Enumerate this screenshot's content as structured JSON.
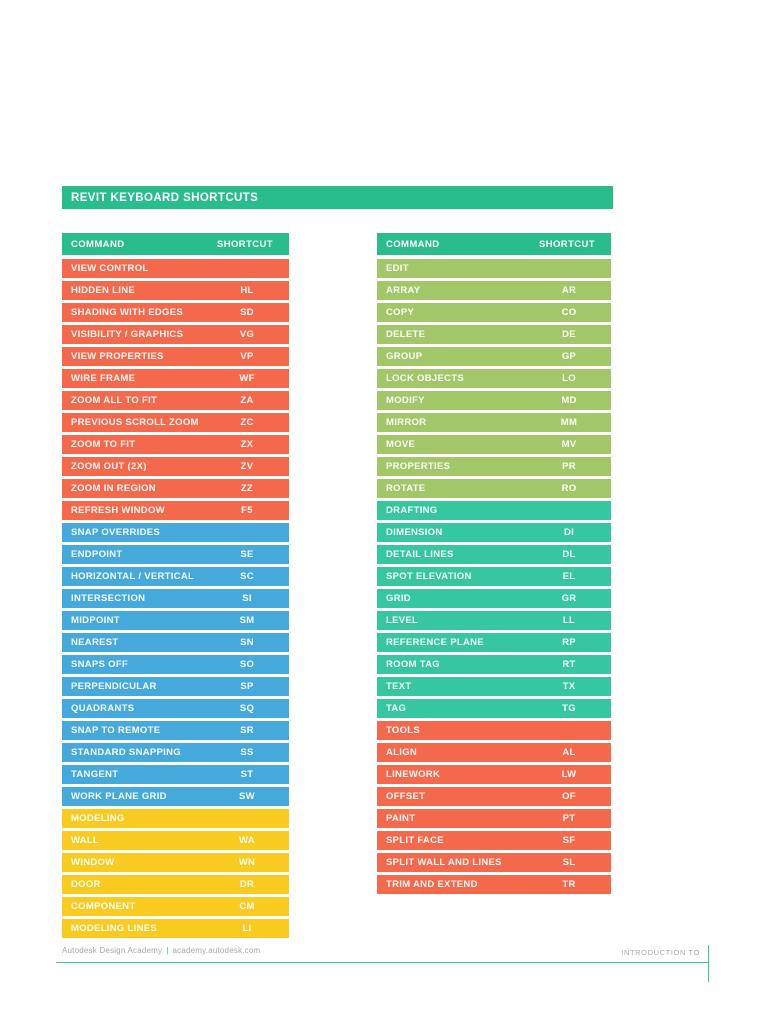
{
  "title": "REVIT KEYBOARD SHORTCUTS",
  "colors": {
    "green": "#29BD8E",
    "orange": "#F4684B",
    "blue": "#45A9DC",
    "yellow": "#F9CB20",
    "light_green": "#A2C769",
    "teal": "#36C7A1",
    "footer_line": "#3CC6A0",
    "footer_text": "#A6A6A6"
  },
  "table_header": {
    "command": "COMMAND",
    "shortcut": "SHORTCUT"
  },
  "columns": [
    {
      "sections": [
        {
          "name": "view-control",
          "color": "orange",
          "rows": [
            {
              "label": "VIEW CONTROL",
              "key": ""
            },
            {
              "label": "HIDDEN LINE",
              "key": "HL"
            },
            {
              "label": "SHADING WITH EDGES",
              "key": "SD"
            },
            {
              "label": "VISIBILITY / GRAPHICS",
              "key": "VG"
            },
            {
              "label": "VIEW PROPERTIES",
              "key": "VP"
            },
            {
              "label": "WIRE FRAME",
              "key": "WF"
            },
            {
              "label": "ZOOM ALL TO FIT",
              "key": "ZA"
            },
            {
              "label": "PREVIOUS SCROLL ZOOM",
              "key": "ZC"
            },
            {
              "label": "ZOOM TO FIT",
              "key": "ZX"
            },
            {
              "label": "ZOOM OUT (2X)",
              "key": "ZV"
            },
            {
              "label": "ZOOM IN REGION",
              "key": "ZZ"
            },
            {
              "label": "REFRESH WINDOW",
              "key": "F5"
            }
          ]
        },
        {
          "name": "snap-overrides",
          "color": "blue",
          "rows": [
            {
              "label": "SNAP OVERRIDES",
              "key": ""
            },
            {
              "label": "ENDPOINT",
              "key": "SE"
            },
            {
              "label": "HORIZONTAL / VERTICAL",
              "key": "SC"
            },
            {
              "label": "INTERSECTION",
              "key": "SI"
            },
            {
              "label": "MIDPOINT",
              "key": "SM"
            },
            {
              "label": "NEAREST",
              "key": "SN"
            },
            {
              "label": "SNAPS OFF",
              "key": "SO"
            },
            {
              "label": "PERPENDICULAR",
              "key": "SP"
            },
            {
              "label": "QUADRANTS",
              "key": "SQ"
            },
            {
              "label": "SNAP TO REMOTE",
              "key": "SR"
            },
            {
              "label": "STANDARD SNAPPING",
              "key": "SS"
            },
            {
              "label": "TANGENT",
              "key": "ST"
            },
            {
              "label": "WORK PLANE GRID",
              "key": "SW"
            }
          ]
        },
        {
          "name": "modeling",
          "color": "yellow",
          "rows": [
            {
              "label": "MODELING",
              "key": ""
            },
            {
              "label": "WALL",
              "key": "WA"
            },
            {
              "label": "WINDOW",
              "key": "WN"
            },
            {
              "label": "DOOR",
              "key": "DR"
            },
            {
              "label": "COMPONENT",
              "key": "CM"
            },
            {
              "label": "MODELING LINES",
              "key": "LI"
            }
          ]
        }
      ]
    },
    {
      "sections": [
        {
          "name": "edit",
          "color": "light_green",
          "rows": [
            {
              "label": "EDIT",
              "key": ""
            },
            {
              "label": "ARRAY",
              "key": "AR"
            },
            {
              "label": "COPY",
              "key": "CO"
            },
            {
              "label": "DELETE",
              "key": "DE"
            },
            {
              "label": "GROUP",
              "key": "GP"
            },
            {
              "label": "LOCK OBJECTS",
              "key": "LO"
            },
            {
              "label": "MODIFY",
              "key": "MD"
            },
            {
              "label": "MIRROR",
              "key": "MM"
            },
            {
              "label": "MOVE",
              "key": "MV"
            },
            {
              "label": "PROPERTIES",
              "key": "PR"
            },
            {
              "label": "ROTATE",
              "key": "RO"
            }
          ]
        },
        {
          "name": "drafting",
          "color": "teal",
          "rows": [
            {
              "label": "DRAFTING",
              "key": ""
            },
            {
              "label": "DIMENSION",
              "key": "DI"
            },
            {
              "label": "DETAIL LINES",
              "key": "DL"
            },
            {
              "label": "SPOT ELEVATION",
              "key": "EL"
            },
            {
              "label": "GRID",
              "key": "GR"
            },
            {
              "label": "LEVEL",
              "key": "LL"
            },
            {
              "label": "REFERENCE PLANE",
              "key": "RP"
            },
            {
              "label": "ROOM TAG",
              "key": "RT"
            },
            {
              "label": "TEXT",
              "key": "TX"
            },
            {
              "label": "TAG",
              "key": "TG"
            }
          ]
        },
        {
          "name": "tools",
          "color": "orange",
          "rows": [
            {
              "label": "TOOLS",
              "key": ""
            },
            {
              "label": "ALIGN",
              "key": "AL"
            },
            {
              "label": "LINEWORK",
              "key": "LW"
            },
            {
              "label": "OFFSET",
              "key": "OF"
            },
            {
              "label": "PAINT",
              "key": "PT"
            },
            {
              "label": "SPLIT FACE",
              "key": "SF"
            },
            {
              "label": "SPLIT WALL AND LINES",
              "key": "SL"
            },
            {
              "label": "TRIM AND EXTEND",
              "key": "TR"
            }
          ]
        }
      ]
    }
  ],
  "footer": {
    "brand": "Autodesk Design Academy",
    "separator": "|",
    "url": "academy.autodesk.com",
    "right_text": "INTRODUCTION TO"
  }
}
